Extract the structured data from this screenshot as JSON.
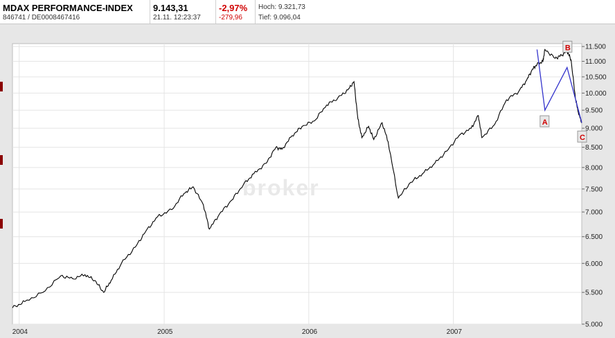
{
  "header": {
    "name": "MDAX PERFORMANCE-INDEX",
    "wkn_isin": "846741  /  DE0008467416",
    "price": "9.143,31",
    "datetime": "21.11. 12:23:37",
    "change_pct": "-2,97%",
    "change_abs": "-279,96",
    "high": "Hoch: 9.321,73",
    "low": "Tief: 9.096,04"
  },
  "watermark": "broker",
  "colors": {
    "accent_red": "#d00000",
    "line": "#000000",
    "wave": "#3333cc"
  },
  "chart_data": {
    "type": "line",
    "title": "",
    "xlabel": "",
    "ylabel": "",
    "y_scale": "log",
    "ylim": [
      5000,
      11600
    ],
    "xlim": [
      "2003-12-15",
      "2007-11-21"
    ],
    "y_ticks": [
      5000,
      5500,
      6000,
      6500,
      7000,
      7500,
      8000,
      8500,
      9000,
      9500,
      10000,
      10500,
      11000,
      11500
    ],
    "y_tick_labels": [
      "5.000",
      "5.500",
      "6.000",
      "6.500",
      "7.000",
      "7.500",
      "8.000",
      "8.500",
      "9.000",
      "9.500",
      "10.000",
      "10.500",
      "11.000",
      "11.500"
    ],
    "x_ticks": [
      "2004-01-01",
      "2005-01-01",
      "2006-01-01",
      "2007-01-01"
    ],
    "x_tick_labels": [
      "2004",
      "2005",
      "2006",
      "2007"
    ],
    "grid": true,
    "series": [
      {
        "x": [
          "2003-12-15",
          "2004-01-15",
          "2004-03-01",
          "2004-04-15",
          "2004-05-15",
          "2004-06-15",
          "2004-07-10",
          "2004-08-01",
          "2004-08-20",
          "2004-09-15",
          "2004-10-20",
          "2004-11-15",
          "2004-12-15",
          "2005-01-20",
          "2005-02-20",
          "2005-03-15",
          "2005-04-10",
          "2005-04-25",
          "2005-05-20",
          "2005-06-20",
          "2005-07-20",
          "2005-08-15",
          "2005-09-15",
          "2005-10-10",
          "2005-10-25",
          "2005-11-20",
          "2005-12-15",
          "2006-01-15",
          "2006-02-15",
          "2006-03-15",
          "2006-04-10",
          "2006-04-25",
          "2006-05-05",
          "2006-05-15",
          "2006-06-01",
          "2006-06-14",
          "2006-07-05",
          "2006-07-20",
          "2006-08-15",
          "2006-09-15",
          "2006-10-15",
          "2006-11-15",
          "2006-12-15",
          "2007-01-15",
          "2007-02-15",
          "2007-03-05",
          "2007-03-14",
          "2007-04-15",
          "2007-05-15",
          "2007-06-15",
          "2007-07-05",
          "2007-07-20",
          "2007-07-31",
          "2007-08-15",
          "2007-08-20",
          "2007-09-15",
          "2007-10-01",
          "2007-10-15",
          "2007-10-25",
          "2007-11-05",
          "2007-11-12",
          "2007-11-21"
        ],
        "y": [
          5250,
          5350,
          5500,
          5780,
          5730,
          5800,
          5700,
          5500,
          5700,
          6000,
          6300,
          6600,
          6900,
          7050,
          7400,
          7550,
          7150,
          6650,
          6950,
          7250,
          7600,
          7850,
          8100,
          8500,
          8450,
          8800,
          9050,
          9200,
          9650,
          9850,
          10100,
          10350,
          9250,
          8750,
          9050,
          8700,
          9150,
          8650,
          7300,
          7650,
          7850,
          8100,
          8400,
          8800,
          9000,
          9350,
          8750,
          9100,
          9800,
          10050,
          10400,
          10750,
          10900,
          11000,
          11400,
          11100,
          11200,
          11350,
          11050,
          9850,
          9450,
          9150
        ]
      }
    ],
    "annotations": [
      {
        "label": "A",
        "x": "2007-08-20",
        "y": 9500
      },
      {
        "label": "B",
        "x": "2007-10-15",
        "y": 10800
      },
      {
        "label": "C",
        "x": "2007-11-21",
        "y": 9150
      }
    ],
    "wave_path": [
      {
        "x": "2007-07-31",
        "y": 11400
      },
      {
        "x": "2007-08-20",
        "y": 9500
      },
      {
        "x": "2007-10-15",
        "y": 10800
      },
      {
        "x": "2007-11-21",
        "y": 9150
      }
    ]
  }
}
